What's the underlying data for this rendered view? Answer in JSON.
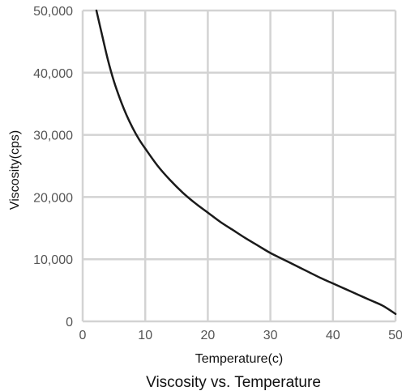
{
  "chart_data": {
    "type": "line",
    "title": "Viscosity vs. Temperature",
    "xlabel": "Temperature(c)",
    "ylabel": "Viscosity(cps)",
    "xlim": [
      0,
      50
    ],
    "ylim": [
      0,
      50000
    ],
    "x_ticks": [
      0,
      10,
      20,
      30,
      40,
      50
    ],
    "x_tick_labels": [
      "0",
      "10",
      "20",
      "30",
      "40",
      "50"
    ],
    "y_ticks": [
      0,
      10000,
      20000,
      30000,
      40000,
      50000
    ],
    "y_tick_labels": [
      "0",
      "10,000",
      "20,000",
      "30,000",
      "40,000",
      "50,000"
    ],
    "grid": true,
    "series": [
      {
        "color": "#1a1a1a",
        "x": [
          2.2,
          3,
          4,
          5,
          6,
          7,
          8,
          9,
          10,
          12,
          14,
          16,
          18,
          20,
          22,
          24,
          26,
          28,
          30,
          32,
          34,
          36,
          38,
          40,
          42,
          44,
          46,
          48,
          50
        ],
        "y": [
          50000,
          46500,
          42200,
          38600,
          35700,
          33200,
          31100,
          29300,
          27800,
          25000,
          22700,
          20700,
          19000,
          17500,
          16000,
          14700,
          13400,
          12200,
          11000,
          10000,
          9000,
          8000,
          7000,
          6100,
          5200,
          4300,
          3400,
          2500,
          1200
        ]
      }
    ]
  }
}
